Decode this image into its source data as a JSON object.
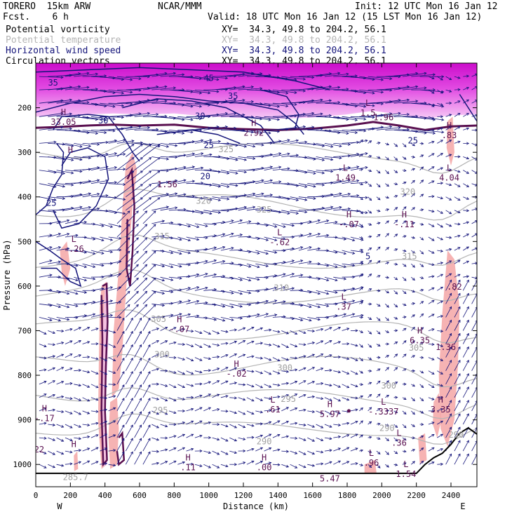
{
  "header": {
    "model": "TORERO  15km ARW",
    "center": "NCAR/MMM",
    "init": "Init: 12 UTC Mon 16 Jan 12",
    "fcst": "Fcst.    6 h",
    "valid": "Valid: 18 UTC Mon 16 Jan 12 (15 LST Mon 16 Jan 12)",
    "fields": [
      {
        "name": "Potential vorticity",
        "xy": "XY=  34.3, 49.8 to 204.2, 56.1",
        "color": "#000000"
      },
      {
        "name": "Potential temperature",
        "xy": "XY=  34.3, 49.8 to 204.2, 56.1",
        "color": "#b4b4b4"
      },
      {
        "name": "Horizontal wind speed",
        "xy": "XY=  34.3, 49.8 to 204.2, 56.1",
        "color": "#14147a"
      },
      {
        "name": "Circulation vectors",
        "xy": "XY=  34.3, 49.8 to 204.2, 56.1",
        "color": "#000000"
      }
    ]
  },
  "chart_data": {
    "type": "cross-section",
    "xlabel": "Distance (km)",
    "ylabel": "Pressure (hPa)",
    "x_ticks": [
      0,
      200,
      400,
      600,
      800,
      1000,
      1200,
      1400,
      1600,
      1800,
      2000,
      2200,
      2400
    ],
    "y_ticks": [
      200,
      300,
      400,
      500,
      600,
      700,
      800,
      900,
      1000
    ],
    "xlim": [
      0,
      2550
    ],
    "ylim": [
      1050,
      100
    ],
    "left_end": "W",
    "right_end": "E",
    "theta_labels": [
      {
        "x": 1100,
        "p": 300,
        "text": "325"
      },
      {
        "x": 2150,
        "p": 395,
        "text": "320"
      },
      {
        "x": 970,
        "p": 415,
        "text": "320"
      },
      {
        "x": 1320,
        "p": 435,
        "text": "325"
      },
      {
        "x": 730,
        "p": 495,
        "text": "315"
      },
      {
        "x": 2160,
        "p": 540,
        "text": "315"
      },
      {
        "x": 1420,
        "p": 610,
        "text": "310"
      },
      {
        "x": 710,
        "p": 680,
        "text": "305"
      },
      {
        "x": 2200,
        "p": 745,
        "text": "305"
      },
      {
        "x": 730,
        "p": 760,
        "text": "300"
      },
      {
        "x": 1440,
        "p": 790,
        "text": "300"
      },
      {
        "x": 2040,
        "p": 830,
        "text": "300"
      },
      {
        "x": 1460,
        "p": 860,
        "text": "295"
      },
      {
        "x": 720,
        "p": 885,
        "text": "295"
      },
      {
        "x": 2030,
        "p": 925,
        "text": "290"
      },
      {
        "x": 1320,
        "p": 955,
        "text": "290"
      },
      {
        "x": 230,
        "p": 1035,
        "text": "285.7"
      },
      {
        "x": 2430,
        "p": 940,
        "text": "290"
      }
    ],
    "wind_labels": [
      {
        "x": 1000,
        "p": 140,
        "text": "45"
      },
      {
        "x": 100,
        "p": 150,
        "text": "35"
      },
      {
        "x": 1140,
        "p": 180,
        "text": "35"
      },
      {
        "x": 950,
        "p": 225,
        "text": "30"
      },
      {
        "x": 390,
        "p": 235,
        "text": "30"
      },
      {
        "x": 1000,
        "p": 290,
        "text": "25"
      },
      {
        "x": 980,
        "p": 360,
        "text": "20"
      },
      {
        "x": 90,
        "p": 420,
        "text": "25"
      },
      {
        "x": 2180,
        "p": 280,
        "text": "25"
      },
      {
        "x": 1920,
        "p": 540,
        "text": "5"
      }
    ],
    "pv_extrema": [
      {
        "x": 1920,
        "p": 215,
        "kind": "L",
        "value": "1.5"
      },
      {
        "x": 2010,
        "p": 225,
        "kind": "",
        "value": "1.96"
      },
      {
        "x": 160,
        "p": 235,
        "kind": "H",
        "value": "33.05"
      },
      {
        "x": 1260,
        "p": 260,
        "kind": "H",
        "value": "2.92"
      },
      {
        "x": 2390,
        "p": 265,
        "kind": "H",
        "value": ".83"
      },
      {
        "x": 200,
        "p": 320,
        "kind": "H",
        "value": ""
      },
      {
        "x": 1790,
        "p": 360,
        "kind": "L",
        "value": "1.49"
      },
      {
        "x": 2390,
        "p": 360,
        "kind": "L",
        "value": "4.04"
      },
      {
        "x": 760,
        "p": 375,
        "kind": "",
        "value": "1.56"
      },
      {
        "x": 1810,
        "p": 465,
        "kind": "H",
        "value": "-.07"
      },
      {
        "x": 2130,
        "p": 465,
        "kind": "H",
        "value": "-.11"
      },
      {
        "x": 1410,
        "p": 505,
        "kind": "L",
        "value": "-.62"
      },
      {
        "x": 220,
        "p": 520,
        "kind": "L",
        "value": "-.26"
      },
      {
        "x": 1780,
        "p": 650,
        "kind": "L",
        "value": ".37"
      },
      {
        "x": 2420,
        "p": 605,
        "kind": "",
        "value": ".82"
      },
      {
        "x": 830,
        "p": 700,
        "kind": "H",
        "value": "-.07"
      },
      {
        "x": 2220,
        "p": 725,
        "kind": "H",
        "value": "6.35"
      },
      {
        "x": 2370,
        "p": 740,
        "kind": "",
        "value": "1.36"
      },
      {
        "x": 1160,
        "p": 800,
        "kind": "H",
        "value": "-.02"
      },
      {
        "x": 1370,
        "p": 880,
        "kind": "L",
        "value": ".61"
      },
      {
        "x": 1700,
        "p": 890,
        "kind": "H",
        "value": "5.97"
      },
      {
        "x": 2010,
        "p": 885,
        "kind": "L",
        "value": "-.3337"
      },
      {
        "x": 2340,
        "p": 880,
        "kind": "H",
        "value": "3.35"
      },
      {
        "x": 50,
        "p": 900,
        "kind": "H",
        "value": "-.17"
      },
      {
        "x": 2100,
        "p": 955,
        "kind": "L",
        "value": ".36"
      },
      {
        "x": 20,
        "p": 970,
        "kind": "",
        "value": "22"
      },
      {
        "x": 220,
        "p": 980,
        "kind": "H",
        "value": ""
      },
      {
        "x": 1320,
        "p": 1010,
        "kind": "H",
        "value": ".00"
      },
      {
        "x": 880,
        "p": 1010,
        "kind": "H",
        "value": ".11"
      },
      {
        "x": 1700,
        "p": 1035,
        "kind": "",
        "value": "5.47"
      },
      {
        "x": 2140,
        "p": 1025,
        "kind": "L",
        "value": "1.54"
      },
      {
        "x": 1940,
        "p": 1000,
        "kind": "L",
        "value": ".96"
      }
    ],
    "tropopause_pv_p": [
      [
        0,
        245
      ],
      [
        150,
        243
      ],
      [
        300,
        240
      ],
      [
        450,
        238
      ],
      [
        600,
        240
      ],
      [
        800,
        238
      ],
      [
        1000,
        245
      ],
      [
        1200,
        248
      ],
      [
        1400,
        250
      ],
      [
        1600,
        247
      ],
      [
        1800,
        240
      ],
      [
        1950,
        232
      ],
      [
        2100,
        240
      ],
      [
        2250,
        250
      ],
      [
        2400,
        242
      ],
      [
        2550,
        240
      ]
    ],
    "ground_p": [
      [
        0,
        1020
      ],
      [
        1000,
        1020
      ],
      [
        2000,
        1020
      ],
      [
        2200,
        1020
      ],
      [
        2250,
        1000
      ],
      [
        2300,
        985
      ],
      [
        2350,
        975
      ],
      [
        2400,
        955
      ],
      [
        2450,
        930
      ],
      [
        2500,
        918
      ],
      [
        2550,
        932
      ]
    ]
  }
}
